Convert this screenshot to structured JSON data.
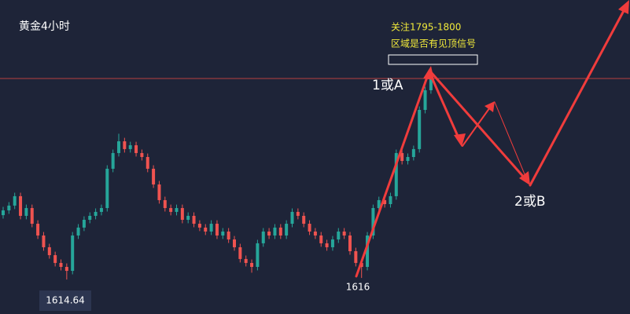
{
  "chart_data": {
    "type": "candlestick",
    "title": "黄金4小时",
    "open": [
      1670.0,
      1674.1,
      1678.2,
      1686.3,
      1669.4,
      1676.1,
      1662.6,
      1652.5,
      1642.4,
      1635.6,
      1628.9,
      1625.5,
      1622.1,
      1652.5,
      1659.3,
      1666.0,
      1669.4,
      1672.8,
      1676.1,
      1709.9,
      1723.4,
      1733.5,
      1726.8,
      1730.1,
      1723.4,
      1720.0,
      1709.9,
      1696.4,
      1682.9,
      1676.1,
      1672.8,
      1676.1,
      1666.0,
      1669.4,
      1662.6,
      1659.3,
      1655.9,
      1662.6,
      1652.5,
      1655.9,
      1649.1,
      1642.4,
      1632.3,
      1628.9,
      1625.5,
      1645.8,
      1655.9,
      1652.5,
      1659.3,
      1652.5,
      1662.6,
      1672.8,
      1669.4,
      1662.6,
      1655.9,
      1652.5,
      1645.8,
      1642.4,
      1649.1,
      1655.9,
      1652.5,
      1639.0,
      1628.9,
      1625.5,
      1652.5,
      1676.1,
      1682.9,
      1679.5,
      1686.3,
      1723.4,
      1716.6,
      1720.0,
      1726.8,
      1760.5,
      1777.4
    ],
    "high": [
      1677.1,
      1681.2,
      1689.3,
      1689.3,
      1679.1,
      1679.1,
      1665.6,
      1655.5,
      1645.4,
      1638.6,
      1631.9,
      1628.5,
      1655.5,
      1662.3,
      1669.0,
      1672.4,
      1675.8,
      1679.1,
      1712.9,
      1726.4,
      1740.0,
      1736.5,
      1733.1,
      1733.1,
      1726.4,
      1723.0,
      1712.9,
      1699.4,
      1685.9,
      1679.1,
      1679.1,
      1679.1,
      1672.4,
      1672.4,
      1665.6,
      1662.3,
      1665.6,
      1665.6,
      1658.9,
      1658.9,
      1652.1,
      1645.4,
      1635.3,
      1631.9,
      1648.8,
      1658.9,
      1658.9,
      1662.3,
      1662.3,
      1665.6,
      1675.8,
      1675.8,
      1672.4,
      1665.6,
      1658.9,
      1655.5,
      1648.8,
      1652.1,
      1658.9,
      1658.9,
      1655.5,
      1642.0,
      1631.9,
      1655.5,
      1679.1,
      1685.9,
      1685.9,
      1689.3,
      1726.4,
      1726.4,
      1723.0,
      1729.8,
      1763.5,
      1780.4,
      1795.9
    ],
    "low": [
      1667.0,
      1671.1,
      1675.2,
      1666.4,
      1666.4,
      1659.6,
      1649.5,
      1639.4,
      1632.6,
      1625.9,
      1622.5,
      1614.64,
      1619.1,
      1649.5,
      1656.3,
      1663.0,
      1666.4,
      1669.8,
      1673.1,
      1706.9,
      1720.4,
      1723.8,
      1723.8,
      1720.4,
      1717.0,
      1706.9,
      1693.4,
      1679.9,
      1673.1,
      1669.8,
      1669.8,
      1663.0,
      1663.0,
      1659.6,
      1656.3,
      1652.9,
      1652.9,
      1649.5,
      1649.5,
      1646.1,
      1639.4,
      1629.3,
      1625.9,
      1620.5,
      1622.5,
      1642.8,
      1649.5,
      1649.5,
      1649.5,
      1649.5,
      1659.6,
      1666.4,
      1659.6,
      1652.9,
      1649.5,
      1642.8,
      1639.4,
      1639.4,
      1646.1,
      1649.5,
      1636.0,
      1625.9,
      1616,
      1622.5,
      1649.5,
      1673.1,
      1676.5,
      1676.5,
      1683.3,
      1713.6,
      1713.6,
      1717.0,
      1723.8,
      1757.5,
      1774.4
    ],
    "close": [
      1674.1,
      1678.2,
      1686.3,
      1669.4,
      1676.1,
      1662.6,
      1652.5,
      1642.4,
      1635.6,
      1628.9,
      1625.5,
      1622.1,
      1652.5,
      1659.3,
      1666.0,
      1669.4,
      1672.8,
      1676.1,
      1709.9,
      1723.4,
      1733.5,
      1726.8,
      1730.1,
      1723.4,
      1720.0,
      1709.9,
      1696.4,
      1682.9,
      1676.1,
      1672.8,
      1676.1,
      1666.0,
      1669.4,
      1662.6,
      1659.3,
      1655.9,
      1662.6,
      1652.5,
      1655.9,
      1649.1,
      1642.4,
      1632.3,
      1628.9,
      1625.5,
      1645.8,
      1655.9,
      1652.5,
      1659.3,
      1652.5,
      1662.6,
      1672.8,
      1669.4,
      1662.6,
      1655.9,
      1652.5,
      1645.8,
      1642.4,
      1649.1,
      1655.9,
      1652.5,
      1639.0,
      1628.9,
      1625.5,
      1652.5,
      1676.1,
      1682.9,
      1679.5,
      1686.3,
      1723.4,
      1716.6,
      1720.0,
      1726.8,
      1760.5,
      1777.4,
      1792.9
    ],
    "ylim": [
      1585,
      1855
    ],
    "up_color": "#26a69a",
    "down_color": "#ef5350",
    "level_line": 1787.5,
    "level_color": "#b8403f",
    "note_lines": [
      "关注1795-1800",
      "区域是否有见顶信号"
    ],
    "wave_labels": [
      "1或A",
      "2或B"
    ]
  }
}
